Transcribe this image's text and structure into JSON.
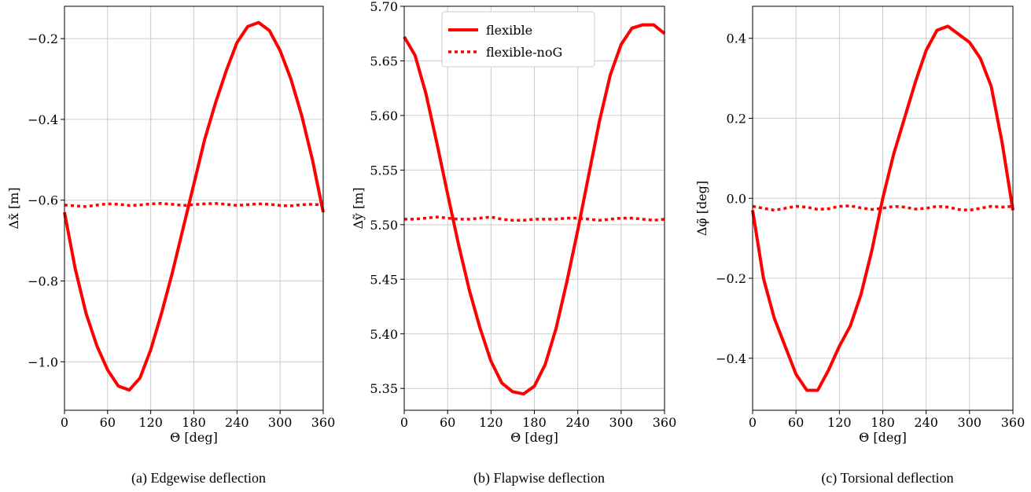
{
  "chart_data": [
    {
      "id": "a",
      "type": "line",
      "caption": "(a) Edgewise deflection",
      "xlabel": "Θ [deg]",
      "ylabel": "Δx̃ [m]",
      "xlim": [
        0,
        360
      ],
      "ylim": [
        -1.12,
        -0.12
      ],
      "xticks": [
        0,
        60,
        120,
        180,
        240,
        300,
        360
      ],
      "yticks": [
        -1.0,
        -0.8,
        -0.6,
        -0.4,
        -0.2
      ],
      "yticklabels": [
        "−1.0",
        "−0.8",
        "−0.6",
        "−0.4",
        "−0.2"
      ],
      "grid": true,
      "series": [
        {
          "name": "flexible",
          "style": "solid",
          "color": "#ff0000",
          "x": [
            0,
            15,
            30,
            45,
            60,
            75,
            90,
            105,
            120,
            135,
            150,
            165,
            180,
            195,
            210,
            225,
            240,
            255,
            270,
            285,
            300,
            315,
            330,
            345,
            360
          ],
          "y": [
            -0.63,
            -0.77,
            -0.88,
            -0.96,
            -1.02,
            -1.06,
            -1.07,
            -1.04,
            -0.97,
            -0.88,
            -0.78,
            -0.67,
            -0.56,
            -0.45,
            -0.36,
            -0.28,
            -0.21,
            -0.17,
            -0.16,
            -0.18,
            -0.23,
            -0.3,
            -0.39,
            -0.5,
            -0.63
          ]
        },
        {
          "name": "flexible-noG",
          "style": "dotted",
          "color": "#ff0000",
          "x": [
            0,
            15,
            30,
            45,
            60,
            75,
            90,
            105,
            120,
            135,
            150,
            165,
            180,
            195,
            210,
            225,
            240,
            255,
            270,
            285,
            300,
            315,
            330,
            345,
            360
          ],
          "y": [
            -0.612,
            -0.614,
            -0.616,
            -0.612,
            -0.609,
            -0.61,
            -0.613,
            -0.612,
            -0.609,
            -0.608,
            -0.61,
            -0.613,
            -0.611,
            -0.609,
            -0.608,
            -0.61,
            -0.613,
            -0.611,
            -0.609,
            -0.61,
            -0.613,
            -0.614,
            -0.611,
            -0.61,
            -0.612
          ]
        }
      ]
    },
    {
      "id": "b",
      "type": "line",
      "caption": "(b) Flapwise deflection",
      "xlabel": "Θ [deg]",
      "ylabel": "Δỹ [m]",
      "xlim": [
        0,
        360
      ],
      "ylim": [
        5.33,
        5.7
      ],
      "xticks": [
        0,
        60,
        120,
        180,
        240,
        300,
        360
      ],
      "yticks": [
        5.35,
        5.4,
        5.45,
        5.5,
        5.55,
        5.6,
        5.65,
        5.7
      ],
      "yticklabels": [
        "5.35",
        "5.40",
        "5.45",
        "5.50",
        "5.55",
        "5.60",
        "5.65",
        "5.70"
      ],
      "grid": true,
      "legend": {
        "position": "upper-center",
        "entries": [
          "flexible",
          "flexible-noG"
        ]
      },
      "series": [
        {
          "name": "flexible",
          "style": "solid",
          "color": "#ff0000",
          "x": [
            0,
            15,
            30,
            45,
            60,
            75,
            90,
            105,
            120,
            135,
            150,
            165,
            180,
            195,
            210,
            225,
            240,
            255,
            270,
            285,
            300,
            315,
            330,
            345,
            360
          ],
          "y": [
            5.672,
            5.655,
            5.62,
            5.575,
            5.528,
            5.482,
            5.44,
            5.405,
            5.375,
            5.355,
            5.347,
            5.345,
            5.352,
            5.372,
            5.405,
            5.448,
            5.495,
            5.545,
            5.595,
            5.637,
            5.665,
            5.68,
            5.683,
            5.683,
            5.675
          ]
        },
        {
          "name": "flexible-noG",
          "style": "dotted",
          "color": "#ff0000",
          "x": [
            0,
            15,
            30,
            45,
            60,
            75,
            90,
            105,
            120,
            135,
            150,
            165,
            180,
            195,
            210,
            225,
            240,
            255,
            270,
            285,
            300,
            315,
            330,
            345,
            360
          ],
          "y": [
            5.505,
            5.505,
            5.506,
            5.507,
            5.506,
            5.505,
            5.505,
            5.506,
            5.507,
            5.505,
            5.504,
            5.504,
            5.505,
            5.505,
            5.505,
            5.506,
            5.506,
            5.505,
            5.504,
            5.505,
            5.506,
            5.506,
            5.505,
            5.504,
            5.505
          ]
        }
      ]
    },
    {
      "id": "c",
      "type": "line",
      "caption": "(c) Torsional deflection",
      "xlabel": "Θ [deg]",
      "ylabel": "Δφ̃ [deg]",
      "xlim": [
        0,
        360
      ],
      "ylim": [
        -0.53,
        0.48
      ],
      "xticks": [
        0,
        60,
        120,
        180,
        240,
        300,
        360
      ],
      "yticks": [
        -0.4,
        -0.2,
        0.0,
        0.2,
        0.4
      ],
      "yticklabels": [
        "−0.4",
        "−0.2",
        "0.0",
        "0.2",
        "0.4"
      ],
      "grid": true,
      "series": [
        {
          "name": "flexible",
          "style": "solid",
          "color": "#ff0000",
          "x": [
            0,
            15,
            30,
            45,
            60,
            75,
            90,
            105,
            120,
            135,
            150,
            165,
            180,
            195,
            210,
            225,
            240,
            255,
            270,
            285,
            300,
            315,
            330,
            345,
            360
          ],
          "y": [
            -0.03,
            -0.2,
            -0.3,
            -0.37,
            -0.44,
            -0.48,
            -0.48,
            -0.43,
            -0.37,
            -0.32,
            -0.24,
            -0.13,
            0.0,
            0.11,
            0.2,
            0.29,
            0.37,
            0.42,
            0.43,
            0.41,
            0.39,
            0.35,
            0.28,
            0.14,
            -0.03
          ]
        },
        {
          "name": "flexible-noG",
          "style": "dotted",
          "color": "#ff0000",
          "x": [
            0,
            15,
            30,
            45,
            60,
            75,
            90,
            105,
            120,
            135,
            150,
            165,
            180,
            195,
            210,
            225,
            240,
            255,
            270,
            285,
            300,
            315,
            330,
            345,
            360
          ],
          "y": [
            -0.02,
            -0.025,
            -0.03,
            -0.025,
            -0.02,
            -0.022,
            -0.028,
            -0.026,
            -0.02,
            -0.019,
            -0.024,
            -0.028,
            -0.025,
            -0.02,
            -0.022,
            -0.027,
            -0.025,
            -0.02,
            -0.022,
            -0.028,
            -0.03,
            -0.025,
            -0.02,
            -0.022,
            -0.02
          ]
        }
      ]
    }
  ]
}
